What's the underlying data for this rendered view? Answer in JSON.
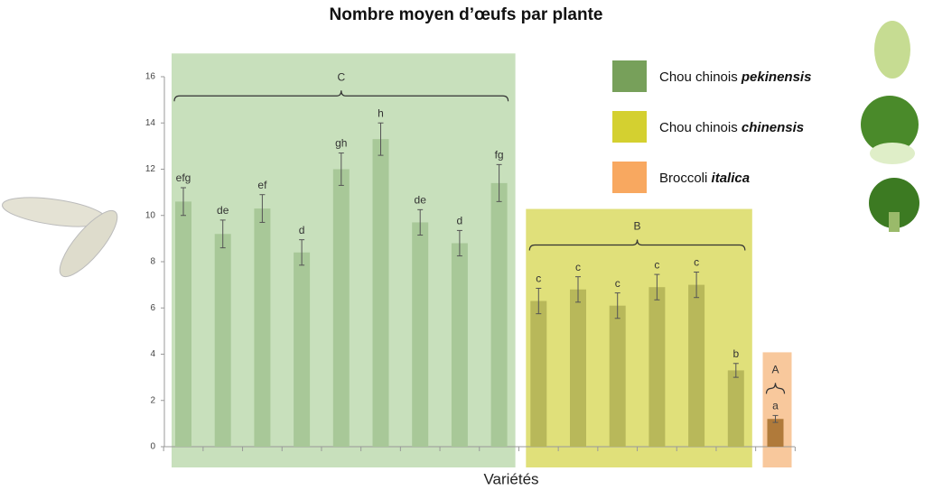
{
  "chart_data": {
    "type": "bar",
    "title": "Nombre moyen d’œufs par plante",
    "x_label": "Variétés",
    "ylim": [
      0,
      16
    ],
    "yticks": [
      0,
      2,
      4,
      6,
      8,
      10,
      12,
      14,
      16
    ],
    "series": [
      {
        "name": "Chou chinois",
        "variety": "pekinensis",
        "group_label": "C",
        "color": "#77a05a",
        "bar_color": "#a8c898",
        "panel_color": "#c8e0bc",
        "values": [
          10.6,
          9.2,
          10.3,
          8.4,
          12.0,
          13.3,
          9.7,
          8.8,
          11.4
        ],
        "errors": [
          0.6,
          0.6,
          0.6,
          0.55,
          0.7,
          0.7,
          0.55,
          0.55,
          0.8
        ],
        "letters": [
          "efg",
          "de",
          "ef",
          "d",
          "gh",
          "h",
          "de",
          "d",
          "fg"
        ]
      },
      {
        "name": "Chou chinois",
        "variety": "chinensis",
        "group_label": "B",
        "color": "#d4d030",
        "bar_color": "#b8b85a",
        "panel_color": "#e0e07a",
        "values": [
          6.3,
          6.8,
          6.1,
          6.9,
          7.0,
          3.3
        ],
        "errors": [
          0.55,
          0.55,
          0.55,
          0.55,
          0.55,
          0.3
        ],
        "letters": [
          "c",
          "c",
          "c",
          "c",
          "c",
          "b"
        ]
      },
      {
        "name": "Broccoli",
        "variety": "italica",
        "group_label": "A",
        "color": "#f8a860",
        "bar_color": "#b07a3a",
        "panel_color": "#f8c89c",
        "values": [
          1.2
        ],
        "errors": [
          0.15
        ],
        "letters": [
          "a"
        ]
      }
    ]
  }
}
